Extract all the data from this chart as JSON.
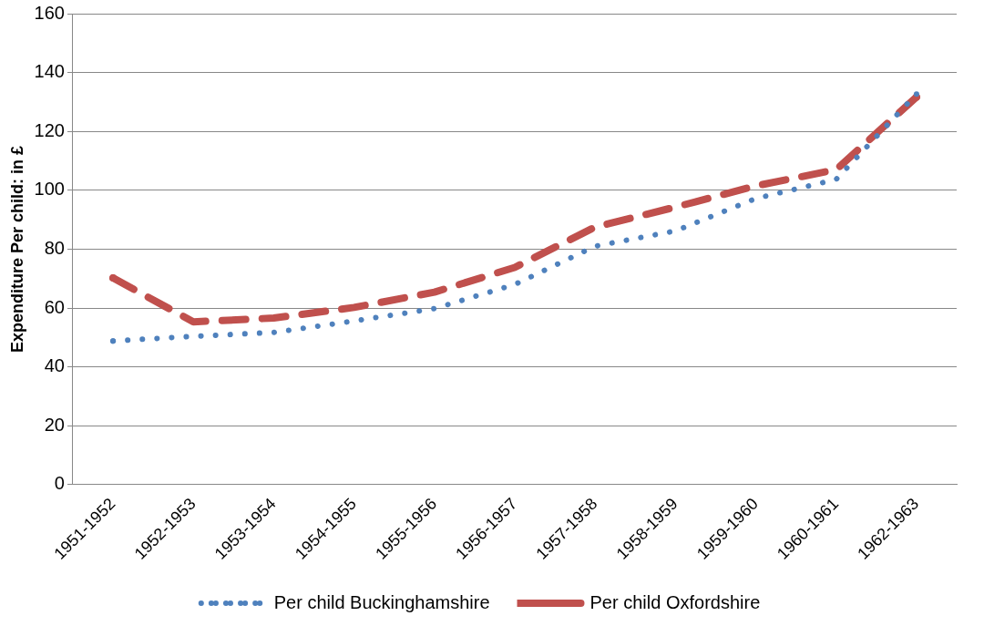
{
  "chart_data": {
    "type": "line",
    "ylabel": "Expenditure Per child: in £",
    "categories": [
      "1951-1952",
      "1952-1953",
      "1953-1954",
      "1954-1955",
      "1955-1956",
      "1956-1957",
      "1957-1958",
      "1958-1959",
      "1959-1960",
      "1960-1961",
      "1962-1963"
    ],
    "series": [
      {
        "name": "Per child Buckinghamshire",
        "color": "#4f81bd",
        "line_style": "dotted",
        "values": [
          48.8,
          50.4,
          51.7,
          55.6,
          59.8,
          68,
          81,
          86.2,
          97.2,
          103.7,
          132.7
        ]
      },
      {
        "name": "Per child Oxfordshire",
        "color": "#c0504d",
        "line_style": "dashed",
        "values": [
          70.2,
          55.3,
          56.6,
          60.2,
          65.4,
          73.8,
          87.5,
          94.3,
          101.5,
          107,
          131.7
        ]
      }
    ],
    "ylim": [
      0,
      160
    ],
    "yticks": [
      0,
      20,
      40,
      60,
      80,
      100,
      120,
      140,
      160
    ],
    "grid": "y",
    "legend": "bottom",
    "marker": "none"
  }
}
